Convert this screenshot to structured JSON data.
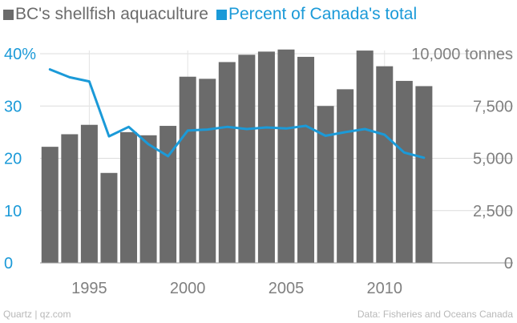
{
  "legend": {
    "items": [
      {
        "label": "BC's shellfish aquaculture",
        "color": "#6b6b6b"
      },
      {
        "label": "Percent of Canada's total",
        "color": "#1b9ad8"
      }
    ]
  },
  "footer": {
    "source_left": "Quartz | qz.com",
    "source_right": "Data: Fisheries and Oceans Canada"
  },
  "chart_data": {
    "type": "bar+line",
    "x_ticks": [
      "1995",
      "2000",
      "2005",
      "2010"
    ],
    "left_axis": {
      "range": [
        0,
        40
      ],
      "ticks": [
        {
          "value": 0,
          "label": "0"
        },
        {
          "value": 10,
          "label": "10"
        },
        {
          "value": 20,
          "label": "20"
        },
        {
          "value": 30,
          "label": "30"
        },
        {
          "value": 40,
          "label": "40%"
        }
      ],
      "color": "#1b9ad8"
    },
    "right_axis": {
      "range": [
        0,
        10000
      ],
      "ticks": [
        {
          "value": 0,
          "label": "0"
        },
        {
          "value": 2500,
          "label": "2,500"
        },
        {
          "value": 5000,
          "label": "5,000"
        },
        {
          "value": 7500,
          "label": "7,500"
        },
        {
          "value": 10000,
          "label": "10,000 tonnes"
        }
      ],
      "color": "#808080"
    },
    "x_range": [
      1992.5,
      2014
    ],
    "bar_color": "#6b6b6b",
    "line_color": "#1b9ad8",
    "series": [
      {
        "name": "BC's shellfish aquaculture",
        "type": "bar",
        "axis": "right",
        "x": [
          1993,
          1994,
          1995,
          1996,
          1997,
          1998,
          1999,
          2000,
          2001,
          2002,
          2003,
          2004,
          2005,
          2006,
          2007,
          2008,
          2009,
          2010,
          2011,
          2012
        ],
        "values": [
          5550,
          6150,
          6600,
          4300,
          6250,
          6100,
          6550,
          8900,
          8800,
          9600,
          9950,
          10100,
          10200,
          9850,
          7500,
          8300,
          10150,
          9400,
          8700,
          8450
        ]
      },
      {
        "name": "Percent of Canada's total",
        "type": "line",
        "axis": "left",
        "x": [
          1993,
          1994,
          1995,
          1996,
          1997,
          1998,
          1999,
          2000,
          2001,
          2002,
          2003,
          2004,
          2005,
          2006,
          2007,
          2008,
          2009,
          2010,
          2011,
          2012
        ],
        "values": [
          37,
          35.5,
          34.7,
          24.2,
          26,
          22.7,
          20.4,
          25.3,
          25.5,
          26,
          25.6,
          25.9,
          25.7,
          26.2,
          24.3,
          25,
          25.6,
          24.5,
          21.1,
          20.1
        ]
      }
    ]
  }
}
